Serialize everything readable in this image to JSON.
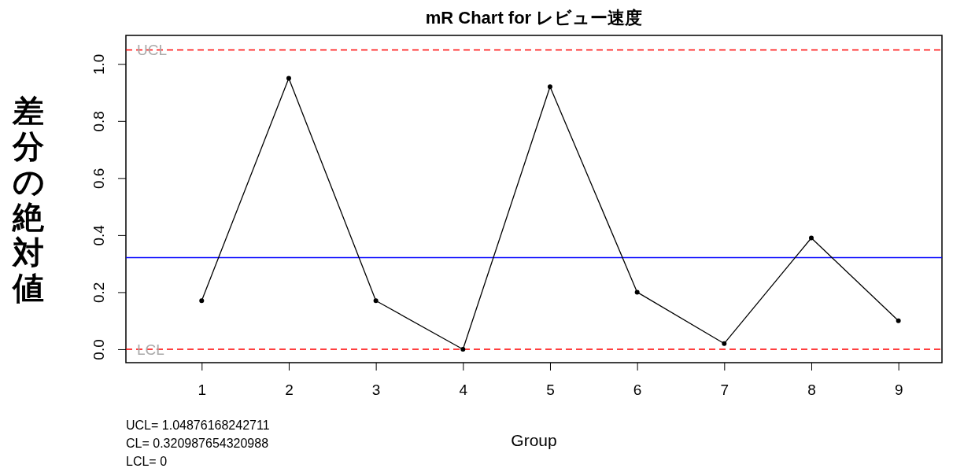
{
  "chart_data": {
    "type": "line",
    "title": "mR Chart for レビュー速度",
    "xlabel": "Group",
    "ylabel": "差分の絶対値",
    "x": [
      1,
      2,
      3,
      4,
      5,
      6,
      7,
      8,
      9
    ],
    "series": [
      {
        "color": "#000000",
        "values": [
          0.17,
          0.95,
          0.17,
          0,
          0.92,
          0.2,
          0.02,
          0.39,
          0.1
        ]
      }
    ],
    "xlim": [
      0.13,
      9.5
    ],
    "xticks": [
      1,
      2,
      3,
      4,
      5,
      6,
      7,
      8,
      9
    ],
    "ylim": [
      -0.047,
      1.1
    ],
    "yticks": [
      {
        "value": 0,
        "label": "0.0"
      },
      0.2,
      0.4,
      0.6,
      0.8,
      {
        "value": 1,
        "label": "1.0"
      }
    ],
    "ref_lines": [
      {
        "axis": "y",
        "value": 1.04876168242711,
        "label": "UCL",
        "color": "#ff0000",
        "line_style": "dashed"
      },
      {
        "axis": "y",
        "value": 0.320987654320988,
        "color": "#0000ff",
        "line_style": "solid"
      },
      {
        "axis": "y",
        "value": 0,
        "label": "LCL",
        "color": "#ff0000",
        "line_style": "dashed"
      }
    ],
    "annotations": [
      "UCL= 1.04876168242711",
      "CL= 0.320987654320988",
      "LCL= 0"
    ],
    "marker": "circle",
    "grid": false
  }
}
